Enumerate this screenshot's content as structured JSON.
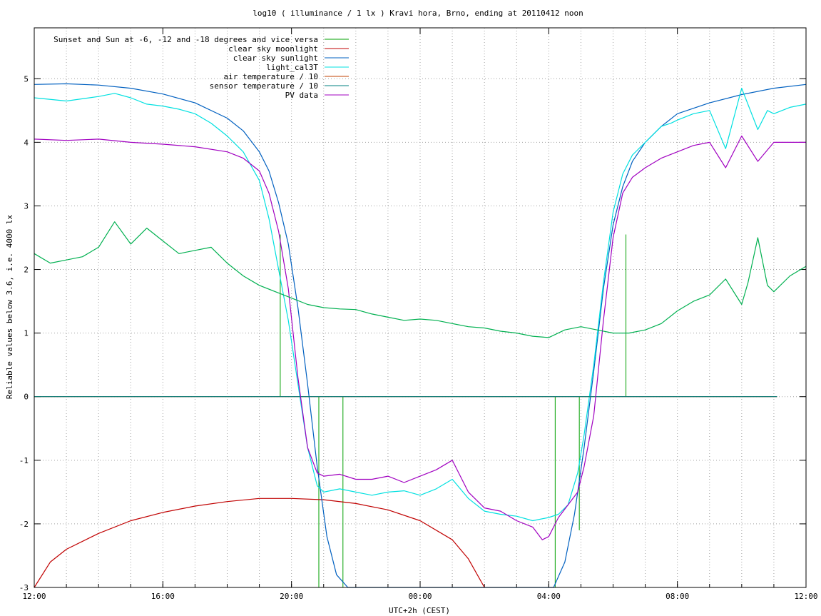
{
  "chart_data": {
    "type": "line",
    "title": "log10 ( illuminance / 1 lx ) Kravi hora, Brno, ending at 20110412 noon",
    "xlabel": "UTC+2h (CEST)",
    "ylabel": "Reliable values below 3.6, i.e. 4000 lx",
    "x_range_hours": [
      0,
      24
    ],
    "ylim": [
      -3,
      5.8
    ],
    "x_ticks": [
      {
        "h": 0,
        "label": "12:00"
      },
      {
        "h": 4,
        "label": "16:00"
      },
      {
        "h": 8,
        "label": "20:00"
      },
      {
        "h": 12,
        "label": "00:00"
      },
      {
        "h": 16,
        "label": "04:00"
      },
      {
        "h": 20,
        "label": "08:00"
      },
      {
        "h": 24,
        "label": "12:00"
      }
    ],
    "x_minor_step_hours": 1,
    "y_ticks": [
      -3,
      -2,
      -1,
      0,
      1,
      2,
      3,
      4,
      5
    ],
    "grid": true,
    "legend_position": "top-left",
    "series": [
      {
        "name": "Sunset and Sun at -6, -12 and -18 degrees and vice versa",
        "color": "#00a000",
        "style": "impulses",
        "x": [
          7.65,
          8.85,
          9.6,
          16.2,
          16.95,
          18.4
        ],
        "values": [
          2.55,
          -3.0,
          -3.0,
          -3.0,
          -2.1,
          2.55
        ]
      },
      {
        "name": "clear sky moonlight",
        "color": "#c00000",
        "x": [
          0,
          0.5,
          1,
          2,
          3,
          4,
          5,
          6,
          7,
          8,
          9,
          10,
          11,
          12,
          13,
          13.5,
          14
        ],
        "values": [
          -3.0,
          -2.6,
          -2.4,
          -2.15,
          -1.95,
          -1.82,
          -1.72,
          -1.65,
          -1.6,
          -1.6,
          -1.62,
          -1.68,
          -1.78,
          -1.95,
          -2.25,
          -2.55,
          -3.0
        ]
      },
      {
        "name": "clear sky sunlight",
        "color": "#0060c0",
        "x": [
          0,
          1,
          2,
          3,
          4,
          5,
          6,
          6.5,
          7,
          7.3,
          7.6,
          7.9,
          8.2,
          8.5,
          8.8,
          9.1,
          9.4,
          9.75,
          16.15,
          16.5,
          16.8,
          17.1,
          17.4,
          17.7,
          18.0,
          18.3,
          18.6,
          19.0,
          19.5,
          20,
          21,
          22,
          23,
          24
        ],
        "values": [
          4.91,
          4.92,
          4.9,
          4.85,
          4.76,
          4.62,
          4.38,
          4.18,
          3.85,
          3.55,
          3.05,
          2.4,
          1.4,
          0.2,
          -1.1,
          -2.2,
          -2.8,
          -3.0,
          -3.0,
          -2.6,
          -1.85,
          -0.8,
          0.4,
          1.7,
          2.7,
          3.3,
          3.7,
          4.0,
          4.25,
          4.45,
          4.62,
          4.75,
          4.85,
          4.91
        ]
      },
      {
        "name": "light_cal3T",
        "color": "#00e0e0",
        "x": [
          0,
          1,
          2,
          2.5,
          3,
          3.5,
          4,
          4.5,
          5,
          5.5,
          6,
          6.5,
          7,
          7.3,
          7.6,
          7.9,
          8.2,
          8.5,
          8.8,
          9.0,
          9.5,
          10,
          10.5,
          11,
          11.5,
          12,
          12.5,
          13,
          13.5,
          14,
          14.5,
          15,
          15.5,
          16,
          16.3,
          16.6,
          16.9,
          17.1,
          17.4,
          17.7,
          18.0,
          18.3,
          18.6,
          19.0,
          19.5,
          19.8,
          20,
          20.5,
          21,
          21.5,
          22,
          22.5,
          22.8,
          23,
          23.5,
          24
        ],
        "values": [
          4.7,
          4.65,
          4.72,
          4.77,
          4.7,
          4.6,
          4.57,
          4.52,
          4.45,
          4.3,
          4.1,
          3.85,
          3.4,
          2.8,
          2.0,
          1.2,
          0.2,
          -0.8,
          -1.4,
          -1.5,
          -1.45,
          -1.5,
          -1.55,
          -1.5,
          -1.48,
          -1.55,
          -1.45,
          -1.3,
          -1.6,
          -1.8,
          -1.85,
          -1.88,
          -1.95,
          -1.9,
          -1.85,
          -1.7,
          -1.2,
          -0.6,
          0.5,
          1.8,
          2.9,
          3.5,
          3.8,
          4.0,
          4.25,
          4.3,
          4.35,
          4.45,
          4.5,
          3.9,
          4.85,
          4.2,
          4.5,
          4.45,
          4.55,
          4.6
        ]
      },
      {
        "name": "air temperature / 10",
        "color": "#c04000",
        "x": [
          0,
          23.1
        ],
        "values": [
          0,
          0
        ]
      },
      {
        "name": "sensor temperature / 10",
        "color": "#008080",
        "x": [
          0,
          23.1
        ],
        "values": [
          0,
          0
        ]
      },
      {
        "name": "PV data",
        "color": "#a000c0",
        "x": [
          0,
          1,
          2,
          3,
          4,
          5,
          6,
          6.5,
          7,
          7.3,
          7.6,
          7.9,
          8.2,
          8.5,
          8.8,
          9.0,
          9.5,
          10,
          10.5,
          11,
          11.5,
          12,
          12.5,
          13,
          13.5,
          14,
          14.5,
          15,
          15.5,
          15.8,
          16,
          16.3,
          16.6,
          16.9,
          17.1,
          17.4,
          17.7,
          18.0,
          18.3,
          18.6,
          19.0,
          19.5,
          20,
          20.5,
          21,
          21.5,
          22,
          22.5,
          23,
          23.5,
          24
        ],
        "values": [
          4.05,
          4.03,
          4.05,
          4.0,
          3.97,
          3.93,
          3.85,
          3.75,
          3.55,
          3.2,
          2.6,
          1.7,
          0.3,
          -0.8,
          -1.2,
          -1.25,
          -1.22,
          -1.3,
          -1.3,
          -1.25,
          -1.35,
          -1.25,
          -1.15,
          -1.0,
          -1.5,
          -1.75,
          -1.8,
          -1.95,
          -2.05,
          -2.25,
          -2.2,
          -1.9,
          -1.7,
          -1.5,
          -1.1,
          -0.3,
          1.2,
          2.5,
          3.2,
          3.45,
          3.6,
          3.75,
          3.85,
          3.95,
          4.0,
          3.6,
          4.1,
          3.7,
          4.0,
          4.0,
          4.0
        ]
      },
      {
        "name": "",
        "color": "#00b050",
        "x": [
          0,
          0.5,
          1,
          1.5,
          2,
          2.5,
          3,
          3.5,
          4,
          4.5,
          5,
          5.5,
          6,
          6.5,
          7,
          7.5,
          8,
          8.5,
          9,
          9.5,
          10,
          10.5,
          11,
          11.5,
          12,
          12.5,
          13,
          13.5,
          14,
          14.5,
          15,
          15.5,
          16,
          16.5,
          17,
          17.5,
          18,
          18.5,
          19,
          19.5,
          20,
          20.5,
          21,
          21.5,
          22,
          22.2,
          22.5,
          22.8,
          23,
          23.5,
          24
        ],
        "values": [
          2.25,
          2.1,
          2.15,
          2.2,
          2.35,
          2.75,
          2.4,
          2.65,
          2.45,
          2.25,
          2.3,
          2.35,
          2.1,
          1.9,
          1.75,
          1.65,
          1.55,
          1.45,
          1.4,
          1.38,
          1.37,
          1.3,
          1.25,
          1.2,
          1.22,
          1.2,
          1.15,
          1.1,
          1.08,
          1.03,
          1.0,
          0.95,
          0.93,
          1.05,
          1.1,
          1.05,
          1.0,
          1.0,
          1.05,
          1.15,
          1.35,
          1.5,
          1.6,
          1.85,
          1.45,
          1.8,
          2.5,
          1.75,
          1.65,
          1.9,
          2.05
        ]
      }
    ]
  }
}
